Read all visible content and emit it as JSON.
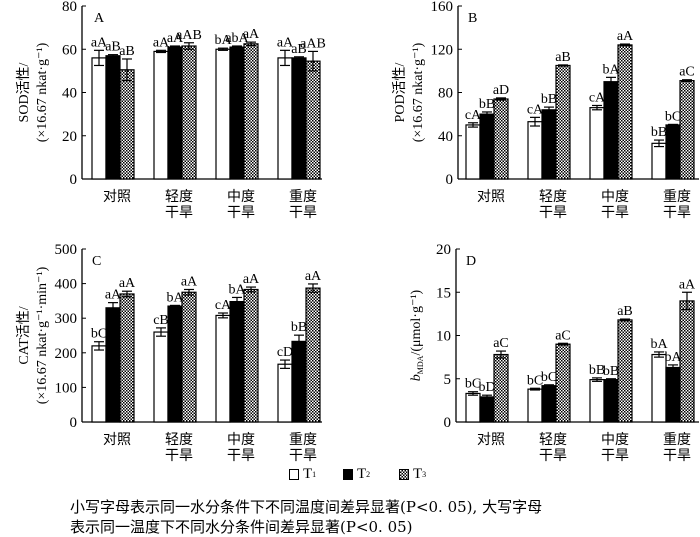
{
  "chart_data": [
    {
      "type": "bar",
      "panel": "A",
      "ylabel_line1": "SOD活性/",
      "ylabel_line2": "(×16.67 nkat·g⁻¹)",
      "ylim": [
        0,
        80
      ],
      "yticks": [
        0,
        20,
        40,
        60,
        80
      ],
      "categories": [
        [
          "对照"
        ],
        [
          "轻度",
          "干旱"
        ],
        [
          "中度",
          "干旱"
        ],
        [
          "重度",
          "干旱"
        ]
      ],
      "series": [
        {
          "name": "T1",
          "values": [
            56,
            59,
            60,
            56
          ],
          "errors": [
            3.5,
            0.5,
            0.5,
            3.5
          ],
          "labels": [
            "aA",
            "aA",
            "bA",
            "aA"
          ]
        },
        {
          "name": "T2",
          "values": [
            57,
            61,
            61,
            56
          ],
          "errors": [
            0.5,
            0.5,
            0.5,
            0.5
          ],
          "labels": [
            "aB",
            "aA",
            "abA",
            "aB"
          ]
        },
        {
          "name": "T3",
          "values": [
            50.5,
            61.5,
            62.5,
            54.5
          ],
          "errors": [
            5,
            1.5,
            0.8,
            4.5
          ],
          "labels": [
            "aB",
            "aAB",
            "aA",
            "aAB"
          ]
        }
      ],
      "extra_label": "A"
    },
    {
      "type": "bar",
      "panel": "B",
      "ylabel_line1": "POD活性/",
      "ylabel_line2": "(×16.67 nkat·g⁻¹)",
      "ylim": [
        0,
        160
      ],
      "yticks": [
        0,
        40,
        80,
        120,
        160
      ],
      "categories": [
        [
          "对照"
        ],
        [
          "轻度",
          "干旱"
        ],
        [
          "中度",
          "干旱"
        ],
        [
          "重度",
          "干旱"
        ]
      ],
      "series": [
        {
          "name": "T1",
          "values": [
            50,
            53,
            66,
            33
          ],
          "errors": [
            2,
            4,
            2,
            3
          ],
          "labels": [
            "cA",
            "cA",
            "cA",
            "bB"
          ]
        },
        {
          "name": "T2",
          "values": [
            60,
            64,
            90,
            50
          ],
          "errors": [
            2,
            2.5,
            4,
            0.5
          ],
          "labels": [
            "bB",
            "bB",
            "bA",
            "bC"
          ]
        },
        {
          "name": "T3",
          "values": [
            74,
            105,
            124,
            91
          ],
          "errors": [
            1,
            0.5,
            0.8,
            0.8
          ],
          "labels": [
            "aD",
            "aB",
            "aA",
            "aC"
          ]
        }
      ]
    },
    {
      "type": "bar",
      "panel": "C",
      "ylabel_line1": "CAT活性/",
      "ylabel_line2": "(×16.67 nkat·g⁻¹·min⁻¹)",
      "ylim": [
        0,
        500
      ],
      "yticks": [
        0,
        100,
        200,
        300,
        400,
        500
      ],
      "categories": [
        [
          "对照"
        ],
        [
          "轻度",
          "干旱"
        ],
        [
          "中度",
          "干旱"
        ],
        [
          "重度",
          "干旱"
        ]
      ],
      "series": [
        {
          "name": "T1",
          "values": [
            220,
            260,
            308,
            167
          ],
          "errors": [
            12,
            12,
            7,
            12
          ],
          "labels": [
            "bC",
            "cB",
            "cA",
            "cD"
          ]
        },
        {
          "name": "T2",
          "values": [
            330,
            335,
            348,
            233
          ],
          "errors": [
            15,
            2,
            12,
            18
          ],
          "labels": [
            "aA",
            "bA",
            "bA",
            "bB"
          ]
        },
        {
          "name": "T3",
          "values": [
            370,
            375,
            383,
            387
          ],
          "errors": [
            8,
            8,
            7,
            12
          ],
          "labels": [
            "aA",
            "aA",
            "aA",
            "aA"
          ]
        }
      ]
    },
    {
      "type": "bar",
      "panel": "D",
      "ylabel_main": "b",
      "ylabel_sub": "MDA",
      "ylabel_rest": "/(μmol·g⁻¹)",
      "ylim": [
        0,
        20
      ],
      "yticks": [
        0,
        5,
        10,
        15,
        20
      ],
      "categories": [
        [
          "对照"
        ],
        [
          "轻度",
          "干旱"
        ],
        [
          "中度",
          "干旱"
        ],
        [
          "重度",
          "干旱"
        ]
      ],
      "series": [
        {
          "name": "T1",
          "values": [
            3.3,
            3.8,
            4.9,
            7.8
          ],
          "errors": [
            0.2,
            0.1,
            0.2,
            0.3
          ],
          "labels": [
            "bC",
            "bC",
            "bB",
            "bA"
          ]
        },
        {
          "name": "T2",
          "values": [
            2.9,
            4.2,
            4.9,
            6.3
          ],
          "errors": [
            0.2,
            0.1,
            0.1,
            0.3
          ],
          "labels": [
            "bD",
            "bC",
            "bB",
            "bA"
          ]
        },
        {
          "name": "T3",
          "values": [
            7.8,
            9.0,
            11.8,
            14.0
          ],
          "errors": [
            0.4,
            0.1,
            0.1,
            1.0
          ],
          "labels": [
            "aC",
            "aC",
            "aB",
            "aA"
          ]
        }
      ]
    }
  ],
  "legend": [
    {
      "label": "T",
      "sub": "1",
      "fill": "white"
    },
    {
      "label": "T",
      "sub": "2",
      "fill": "black"
    },
    {
      "label": "T",
      "sub": "3",
      "fill": "checker"
    }
  ],
  "footnote": {
    "line1": "小写字母表示同一水分条件下不同温度间差异显著(P<0. 05), 大写字母",
    "line2": "表示同一温度下不同水分条件间差异显著(P<0. 05)"
  },
  "colors": {
    "axis": "#000000",
    "bar_white": "#ffffff",
    "bar_black": "#000000"
  }
}
